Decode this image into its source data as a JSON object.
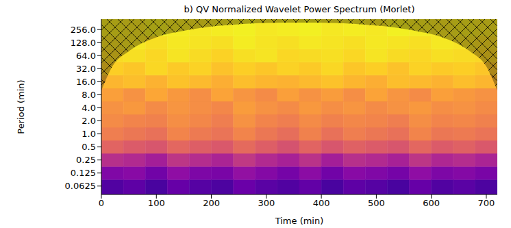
{
  "chart_data": {
    "type": "heatmap",
    "title": "b) QV Normalized Wavelet Power Spectrum (Morlet)",
    "x_label": "Time (min)",
    "y_label": "Period (min)",
    "log": "y",
    "grid": false,
    "xlim": [
      0,
      720
    ],
    "xticks": [
      0,
      100,
      200,
      300,
      400,
      500,
      600,
      700
    ],
    "ylim": [
      0.04,
      445
    ],
    "yticks": [
      {
        "value": 256,
        "label": "256.0"
      },
      {
        "value": 128,
        "label": "128.0"
      },
      {
        "value": 64,
        "label": "64.0"
      },
      {
        "value": 32,
        "label": "32.0"
      },
      {
        "value": 16,
        "label": "16.0"
      },
      {
        "value": 8,
        "label": "8.0"
      },
      {
        "value": 4,
        "label": "4.0"
      },
      {
        "value": 2,
        "label": "2.0"
      },
      {
        "value": 1,
        "label": "1.0"
      },
      0.5,
      0.25,
      0.125,
      0.0625
    ],
    "x": [
      20,
      60,
      100,
      140,
      180,
      220,
      260,
      300,
      340,
      380,
      420,
      460,
      500,
      540,
      580,
      620,
      660,
      700
    ],
    "y": [
      0.0625,
      0.125,
      0.25,
      0.5,
      1,
      2,
      4,
      8,
      16,
      32,
      64,
      128,
      256
    ],
    "cells": [
      [
        0.14,
        0.17,
        0.12,
        0.19,
        0.15,
        0.13,
        0.2,
        0.16,
        0.14,
        0.18,
        0.12,
        0.17,
        0.15,
        0.12,
        0.19,
        0.14,
        0.16,
        0.13
      ],
      [
        0.26,
        0.28,
        0.22,
        0.3,
        0.25,
        0.24,
        0.31,
        0.27,
        0.23,
        0.29,
        0.22,
        0.28,
        0.26,
        0.23,
        0.3,
        0.25,
        0.27,
        0.24
      ],
      [
        0.42,
        0.4,
        0.36,
        0.44,
        0.41,
        0.38,
        0.45,
        0.4,
        0.37,
        0.43,
        0.36,
        0.42,
        0.4,
        0.37,
        0.44,
        0.39,
        0.41,
        0.38
      ],
      [
        0.6,
        0.57,
        0.55,
        0.61,
        0.58,
        0.56,
        0.62,
        0.58,
        0.54,
        0.6,
        0.55,
        0.59,
        0.57,
        0.55,
        0.61,
        0.57,
        0.59,
        0.56
      ],
      [
        0.68,
        0.66,
        0.64,
        0.7,
        0.67,
        0.65,
        0.7,
        0.66,
        0.63,
        0.69,
        0.64,
        0.68,
        0.66,
        0.64,
        0.7,
        0.66,
        0.67,
        0.65
      ],
      [
        0.72,
        0.7,
        0.69,
        0.73,
        0.71,
        0.68,
        0.74,
        0.7,
        0.68,
        0.72,
        0.69,
        0.71,
        0.7,
        0.68,
        0.73,
        0.7,
        0.71,
        0.69
      ],
      [
        0.74,
        0.76,
        0.72,
        0.75,
        0.73,
        0.71,
        0.77,
        0.74,
        0.72,
        0.76,
        0.73,
        0.75,
        0.72,
        0.74,
        0.76,
        0.73,
        0.74,
        0.72
      ],
      [
        0.78,
        0.74,
        0.8,
        0.76,
        0.73,
        0.79,
        0.75,
        0.72,
        0.78,
        0.74,
        0.77,
        0.73,
        0.79,
        0.75,
        0.72,
        0.78,
        0.76,
        0.74
      ],
      [
        0.84,
        0.86,
        0.83,
        0.87,
        0.85,
        0.82,
        0.86,
        0.84,
        0.83,
        0.85,
        0.87,
        0.84,
        0.82,
        0.86,
        0.85,
        0.83,
        0.86,
        0.84
      ],
      [
        0.9,
        0.88,
        0.92,
        0.89,
        0.91,
        0.87,
        0.9,
        0.88,
        0.91,
        0.89,
        0.92,
        0.88,
        0.9,
        0.87,
        0.91,
        0.89,
        0.9,
        0.88
      ],
      [
        0.93,
        0.94,
        0.92,
        0.95,
        0.93,
        0.91,
        0.94,
        0.95,
        0.92,
        0.93,
        0.94,
        0.92,
        0.95,
        0.93,
        0.92,
        0.94,
        0.93,
        0.92
      ],
      [
        0.95,
        0.96,
        0.94,
        0.96,
        0.95,
        0.94,
        0.97,
        0.95,
        0.94,
        0.96,
        0.95,
        0.94,
        0.96,
        0.95,
        0.94,
        0.96,
        0.95,
        0.94
      ],
      [
        0.97,
        0.96,
        0.98,
        0.97,
        0.96,
        0.97,
        0.98,
        0.96,
        0.97,
        0.98,
        0.96,
        0.97,
        0.96,
        0.98,
        0.97,
        0.96,
        0.97,
        0.96
      ]
    ],
    "cell_range": [
      0,
      1
    ],
    "coi": {
      "x": [
        0,
        20,
        50,
        100,
        150,
        200,
        250,
        300,
        360,
        420,
        470,
        520,
        570,
        620,
        670,
        700,
        720
      ],
      "values": [
        10,
        36,
        81,
        170,
        240,
        300,
        340,
        365,
        370,
        365,
        340,
        300,
        240,
        170,
        81,
        36,
        10
      ]
    }
  }
}
